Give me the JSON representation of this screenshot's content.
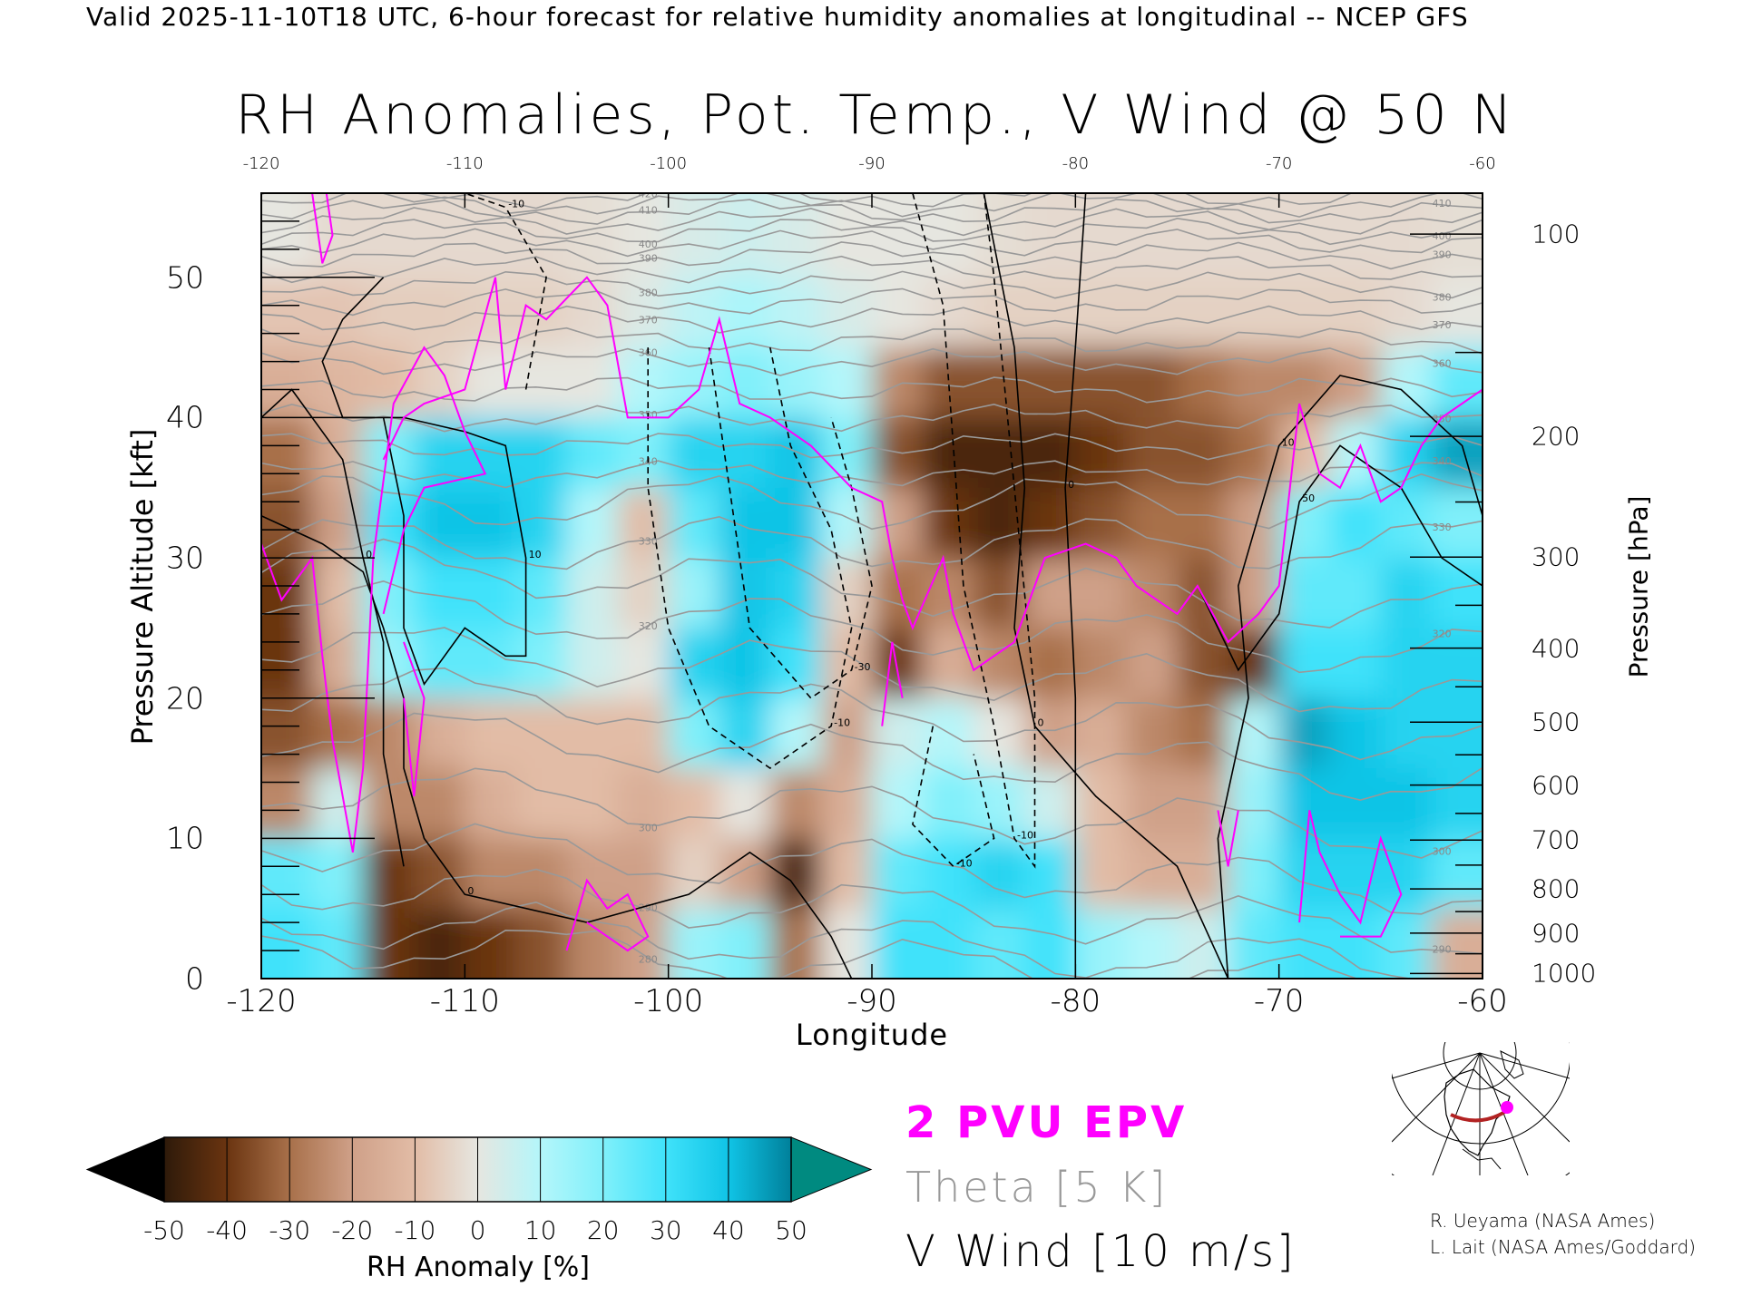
{
  "header": "Valid 2025-11-10T18 UTC, 6-hour forecast for relative humidity anomalies at longitudinal -- NCEP GFS",
  "title": "RH Anomalies, Pot. Temp., V Wind @ 50 N",
  "chart_data": {
    "type": "heatmap",
    "title": "RH Anomalies, Pot. Temp., V Wind @ 50 N",
    "xlabel": "Longitude",
    "ylabel": "Pressure Altitude [kft]",
    "y2label": "Pressure [hPa]",
    "xlim": [
      -120,
      -60
    ],
    "ylim": [
      0,
      56
    ],
    "x_ticks": [
      "-120",
      "-110",
      "-100",
      "-90",
      "-80",
      "-70",
      "-60"
    ],
    "x_tick_values": [
      -120,
      -110,
      -100,
      -90,
      -80,
      -70,
      -60
    ],
    "top_ticks": [
      "-120",
      "-110",
      "-100",
      "-90",
      "-80",
      "-70",
      "-60"
    ],
    "y_ticks": [
      "0",
      "10",
      "20",
      "30",
      "40",
      "50"
    ],
    "y_tick_values": [
      0,
      10,
      20,
      30,
      40,
      50
    ],
    "pressure_ticks": [
      "100",
      "200",
      "300",
      "400",
      "500",
      "600",
      "700",
      "800",
      "900",
      "1000"
    ],
    "pressure_values": [
      100,
      200,
      300,
      400,
      500,
      600,
      700,
      800,
      900,
      1000
    ],
    "rh_grid_lon": [
      -118.75,
      -116.25,
      -113.75,
      -111.25,
      -108.75,
      -106.25,
      -103.75,
      -101.25,
      -98.75,
      -96.25,
      -93.75,
      -91.25,
      -88.75,
      -86.25,
      -83.75,
      -81.25,
      -78.75,
      -76.25,
      -73.75,
      -71.25,
      -68.75,
      -66.25,
      -63.75,
      -61.25
    ],
    "rh_grid_alt_kft": [
      53,
      47.5,
      42.5,
      37.5,
      32.5,
      27.5,
      22.5,
      17.5,
      12.5,
      7.5,
      2.5
    ],
    "rh_anomaly": [
      [
        0,
        -3,
        -3,
        -3,
        -3,
        -3,
        -2,
        0,
        3,
        5,
        3,
        0,
        0,
        0,
        -2,
        -3,
        -3,
        -3,
        -3,
        -3,
        -3,
        -3,
        -3,
        -2
      ],
      [
        -8,
        -8,
        -6,
        -6,
        -5,
        -5,
        -3,
        2,
        8,
        12,
        8,
        3,
        0,
        -3,
        -5,
        -5,
        -5,
        -5,
        -5,
        -5,
        -5,
        -5,
        -3,
        0
      ],
      [
        -15,
        -12,
        -10,
        -5,
        0,
        0,
        0,
        10,
        15,
        20,
        15,
        10,
        -25,
        -35,
        -35,
        -35,
        -35,
        -35,
        -30,
        -25,
        -25,
        -20,
        10,
        25
      ],
      [
        -30,
        -15,
        20,
        35,
        35,
        35,
        25,
        20,
        35,
        35,
        40,
        20,
        -35,
        -45,
        -45,
        -45,
        -40,
        -35,
        -35,
        -30,
        -10,
        10,
        35,
        45
      ],
      [
        -35,
        -20,
        30,
        40,
        40,
        35,
        10,
        -10,
        25,
        40,
        40,
        10,
        -20,
        -40,
        -45,
        -40,
        -35,
        -30,
        -30,
        -20,
        20,
        30,
        25,
        20
      ],
      [
        -40,
        -10,
        20,
        30,
        30,
        25,
        5,
        -5,
        15,
        40,
        35,
        -5,
        -30,
        -25,
        -35,
        -20,
        -20,
        -25,
        -35,
        -20,
        25,
        25,
        35,
        30
      ],
      [
        -40,
        -15,
        15,
        25,
        25,
        20,
        5,
        0,
        35,
        40,
        30,
        -10,
        -40,
        -15,
        -25,
        -30,
        -25,
        -20,
        -35,
        -40,
        30,
        30,
        35,
        35
      ],
      [
        -35,
        -30,
        -25,
        -15,
        -10,
        -10,
        -10,
        -10,
        20,
        35,
        10,
        -20,
        5,
        10,
        0,
        -20,
        -15,
        -25,
        -30,
        10,
        45,
        40,
        35,
        35
      ],
      [
        -25,
        5,
        -25,
        -25,
        -15,
        -10,
        -10,
        -15,
        -10,
        0,
        -25,
        -15,
        10,
        20,
        15,
        5,
        -10,
        -20,
        -20,
        15,
        40,
        40,
        40,
        35
      ],
      [
        25,
        20,
        -40,
        -35,
        -25,
        -25,
        -20,
        -20,
        -5,
        -20,
        -45,
        -10,
        25,
        30,
        35,
        30,
        -10,
        -15,
        -15,
        20,
        35,
        35,
        35,
        25
      ],
      [
        30,
        25,
        -40,
        -45,
        -40,
        -35,
        -25,
        -20,
        15,
        20,
        -30,
        0,
        30,
        30,
        25,
        30,
        15,
        10,
        5,
        25,
        30,
        30,
        25,
        -15
      ]
    ],
    "theta_levels": [
      280,
      285,
      290,
      295,
      300,
      305,
      310,
      315,
      320,
      325,
      330,
      335,
      340,
      345,
      350,
      355,
      360,
      365,
      370,
      375,
      380,
      385,
      390,
      395,
      400,
      405,
      410,
      415,
      420
    ],
    "theta_labels": [
      "420",
      "410",
      "400",
      "390",
      "380",
      "370",
      "360",
      "350",
      "340",
      "330",
      "320",
      "300",
      "290",
      "280"
    ],
    "v_wind_contours": [
      {
        "level": "0",
        "style": "solid",
        "points": [
          [
            -84.5,
            56
          ],
          [
            -83,
            45
          ],
          [
            -82.5,
            35
          ],
          [
            -83,
            25
          ],
          [
            -82,
            18
          ],
          [
            -79,
            13
          ],
          [
            -75,
            8
          ],
          [
            -72.5,
            0
          ]
        ]
      },
      {
        "level": "0",
        "style": "solid",
        "points": [
          [
            -79.5,
            56
          ],
          [
            -80,
            45
          ],
          [
            -80.5,
            35
          ],
          [
            -80,
            20
          ],
          [
            -80,
            0
          ]
        ]
      },
      {
        "level": "10",
        "style": "solid",
        "points": [
          [
            -72.5,
            0
          ],
          [
            -73,
            10
          ],
          [
            -71.5,
            20
          ],
          [
            -72,
            28
          ],
          [
            -70,
            38
          ],
          [
            -67,
            43
          ],
          [
            -64,
            42
          ],
          [
            -61,
            38
          ],
          [
            -60,
            33
          ]
        ]
      },
      {
        "level": "50",
        "style": "solid",
        "points": [
          [
            -74,
            28
          ],
          [
            -73,
            25
          ],
          [
            -72,
            22
          ],
          [
            -70,
            26
          ],
          [
            -69,
            34
          ],
          [
            -67,
            38
          ],
          [
            -64,
            35
          ],
          [
            -62,
            30
          ],
          [
            -60,
            28
          ]
        ]
      },
      {
        "level": "0",
        "style": "solid",
        "points": [
          [
            -120,
            33
          ],
          [
            -117,
            31
          ],
          [
            -115,
            29
          ],
          [
            -114,
            25
          ],
          [
            -113,
            20
          ],
          [
            -113,
            15
          ],
          [
            -112,
            10
          ],
          [
            -110,
            6
          ],
          [
            -104,
            4
          ],
          [
            -99,
            6
          ],
          [
            -96,
            9
          ],
          [
            -94,
            7
          ],
          [
            -92,
            3
          ],
          [
            -91,
            0
          ]
        ]
      },
      {
        "level": "0",
        "style": "solid",
        "points": [
          [
            -120,
            40
          ],
          [
            -118.5,
            42
          ],
          [
            -116,
            37
          ],
          [
            -115,
            30
          ],
          [
            -114,
            24
          ],
          [
            -114,
            16
          ],
          [
            -113,
            8
          ]
        ]
      },
      {
        "level": "10",
        "style": "solid",
        "points": [
          [
            -114,
            50
          ],
          [
            -116,
            47
          ],
          [
            -117,
            44
          ],
          [
            -116,
            40
          ],
          [
            -113,
            40
          ],
          [
            -110,
            39
          ],
          [
            -108,
            38
          ],
          [
            -107,
            30
          ],
          [
            -107,
            23
          ],
          [
            -108,
            23
          ],
          [
            -110,
            25
          ],
          [
            -112,
            21
          ],
          [
            -113,
            25
          ],
          [
            -113,
            33
          ],
          [
            -114,
            40
          ]
        ]
      },
      {
        "level": "-10",
        "style": "dashed",
        "points": [
          [
            -88,
            56
          ],
          [
            -86.5,
            48
          ],
          [
            -86,
            38
          ],
          [
            -85.5,
            28
          ],
          [
            -84,
            18
          ],
          [
            -83,
            10
          ],
          [
            -82,
            8
          ],
          [
            -82,
            20
          ],
          [
            -83,
            35
          ],
          [
            -84,
            50
          ],
          [
            -84.5,
            56
          ]
        ]
      },
      {
        "level": "-10",
        "style": "dashed",
        "points": [
          [
            -101,
            45
          ],
          [
            -101,
            35
          ],
          [
            -100,
            25
          ],
          [
            -98,
            18
          ],
          [
            -95,
            15
          ],
          [
            -92,
            18
          ],
          [
            -91,
            25
          ],
          [
            -92,
            32
          ],
          [
            -94,
            38
          ],
          [
            -95,
            45
          ]
        ]
      },
      {
        "level": "-30",
        "style": "dashed",
        "points": [
          [
            -98,
            45
          ],
          [
            -97,
            35
          ],
          [
            -96,
            25
          ],
          [
            -93,
            20
          ],
          [
            -91,
            22
          ],
          [
            -90,
            28
          ],
          [
            -91,
            35
          ],
          [
            -92,
            40
          ]
        ]
      },
      {
        "level": "-10",
        "style": "dashed",
        "points": [
          [
            -107,
            42
          ],
          [
            -106,
            50
          ],
          [
            -108,
            55
          ],
          [
            -110,
            56
          ]
        ]
      },
      {
        "level": "-10",
        "style": "dashed",
        "points": [
          [
            -87,
            18
          ],
          [
            -88,
            11
          ],
          [
            -86,
            8
          ],
          [
            -84,
            10
          ],
          [
            -85,
            16
          ]
        ]
      }
    ],
    "pv_2pvu_lines": [
      [
        [
          -114,
          37
        ],
        [
          -113,
          40
        ],
        [
          -112,
          41
        ],
        [
          -110,
          42
        ],
        [
          -108.5,
          50
        ],
        [
          -108,
          42
        ],
        [
          -107,
          48
        ],
        [
          -106,
          47
        ],
        [
          -104,
          50
        ],
        [
          -103,
          48
        ],
        [
          -102,
          40
        ],
        [
          -100,
          40
        ],
        [
          -98.5,
          42
        ],
        [
          -97.5,
          47
        ],
        [
          -96.5,
          41
        ],
        [
          -95,
          40
        ],
        [
          -93,
          38
        ],
        [
          -91,
          35
        ],
        [
          -89.5,
          34
        ],
        [
          -89,
          30
        ],
        [
          -88.5,
          27
        ],
        [
          -88,
          25
        ],
        [
          -86.5,
          30
        ],
        [
          -86,
          26
        ],
        [
          -85,
          22
        ],
        [
          -84,
          23
        ],
        [
          -83,
          24
        ],
        [
          -81.5,
          30
        ],
        [
          -79.5,
          31
        ],
        [
          -78,
          30
        ],
        [
          -77,
          28
        ],
        [
          -75,
          26
        ],
        [
          -74,
          28
        ],
        [
          -72.5,
          24
        ],
        [
          -71,
          26
        ],
        [
          -70,
          28
        ],
        [
          -69,
          41
        ],
        [
          -68,
          36
        ],
        [
          -67,
          35
        ],
        [
          -66,
          38
        ],
        [
          -65,
          34
        ],
        [
          -64,
          35
        ],
        [
          -63,
          38
        ],
        [
          -62,
          40
        ],
        [
          -60,
          42
        ]
      ],
      [
        [
          -117.5,
          56
        ],
        [
          -117,
          51
        ],
        [
          -116.5,
          53
        ],
        [
          -116.8,
          56
        ]
      ],
      [
        [
          -120,
          31
        ],
        [
          -119,
          27
        ],
        [
          -117.5,
          30
        ],
        [
          -117,
          23
        ],
        [
          -116.5,
          17
        ],
        [
          -115.5,
          9
        ],
        [
          -115,
          15
        ],
        [
          -114.5,
          30
        ],
        [
          -113.5,
          41
        ],
        [
          -112,
          45
        ],
        [
          -111,
          43
        ],
        [
          -110,
          39
        ],
        [
          -109,
          36
        ],
        [
          -112,
          35
        ],
        [
          -113,
          32
        ],
        [
          -114,
          26
        ]
      ],
      [
        [
          -113,
          20
        ],
        [
          -112.5,
          13
        ],
        [
          -112,
          20
        ],
        [
          -113,
          24
        ]
      ],
      [
        [
          -105,
          2
        ],
        [
          -104,
          7
        ],
        [
          -103,
          5
        ],
        [
          -102,
          6
        ],
        [
          -101,
          3
        ],
        [
          -102,
          2
        ],
        [
          -104,
          4
        ]
      ],
      [
        [
          -89.5,
          18
        ],
        [
          -89,
          24
        ],
        [
          -88.5,
          20
        ]
      ],
      [
        [
          -73,
          12
        ],
        [
          -72.5,
          8
        ],
        [
          -72,
          12
        ]
      ],
      [
        [
          -69,
          4
        ],
        [
          -68.5,
          12
        ],
        [
          -68,
          9
        ],
        [
          -67,
          6
        ],
        [
          -66,
          4
        ],
        [
          -65,
          10
        ],
        [
          -64,
          6
        ],
        [
          -65,
          3
        ],
        [
          -67,
          3
        ]
      ]
    ]
  },
  "colorbar": {
    "labels": [
      "-50",
      "-40",
      "-30",
      "-20",
      "-10",
      "0",
      "10",
      "20",
      "30",
      "40",
      "50"
    ],
    "title": "RH Anomaly [%]",
    "colors": [
      "#2e1a0a",
      "#6a3410",
      "#a8704a",
      "#cfa088",
      "#e2bca6",
      "#e6e6e0",
      "#b4f6fa",
      "#80f0fa",
      "#40e2fa",
      "#10c4e6",
      "#00809a"
    ],
    "low_color": "#000000",
    "high_color": "#008a80"
  },
  "legend": {
    "pv": "2 PVU EPV",
    "theta": "Theta [5 K]",
    "wind": "V Wind [10 m/s]",
    "pv_color": "#ff00ff",
    "theta_color": "#999999"
  },
  "credits": [
    "R. Ueyama (NASA Ames)",
    "L. Lait (NASA Ames/Goddard)"
  ]
}
